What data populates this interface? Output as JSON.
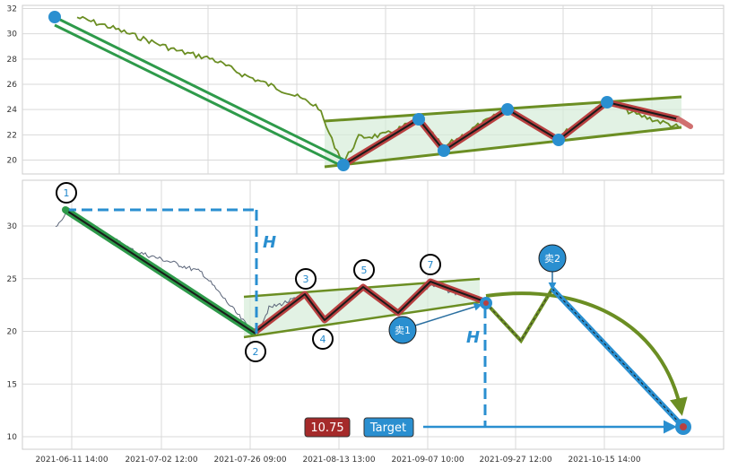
{
  "chart_data": [
    {
      "type": "line",
      "y_ticks": [
        "20",
        "22",
        "24",
        "26",
        "28",
        "30",
        "32"
      ],
      "ylim": [
        19,
        32
      ],
      "grid": true,
      "pattern_points": [
        {
          "date": "2021-06-11",
          "value": 31.3
        },
        {
          "date": "2021-07-26",
          "value": 19.6
        },
        {
          "date": "2021-08-06",
          "value": 23.3
        },
        {
          "date": "2021-08-13",
          "value": 20.7
        },
        {
          "date": "2021-08-27",
          "value": 24.0
        },
        {
          "date": "2021-09-07",
          "value": 21.6
        },
        {
          "date": "2021-09-15",
          "value": 24.6
        },
        {
          "date": "2021-09-25",
          "value": 22.6
        }
      ],
      "channel_upper": [
        {
          "date": "2021-07-25",
          "value": 23.0
        },
        {
          "date": "2021-09-29",
          "value": 25.0
        }
      ],
      "channel_lower": [
        {
          "date": "2021-07-25",
          "value": 19.5
        },
        {
          "date": "2021-09-29",
          "value": 22.5
        }
      ]
    },
    {
      "type": "line",
      "y_ticks": [
        "10",
        "15",
        "20",
        "25",
        "30"
      ],
      "ylim": [
        9,
        34
      ],
      "x_ticks": [
        "2021-06-11 14:00",
        "2021-07-02 12:00",
        "2021-07-26 09:00",
        "2021-08-13 13:00",
        "2021-09-07 10:00",
        "2021-09-27 12:00",
        "2021-10-15 14:00"
      ],
      "grid": true,
      "points": [
        {
          "label": "1",
          "value": 31.6
        },
        {
          "label": "2",
          "value": 19.5
        },
        {
          "label": "3",
          "value": 23.5
        },
        {
          "label": "4",
          "value": 20.5
        },
        {
          "label": "5",
          "value": 24.2
        },
        {
          "label": "7",
          "value": 24.6
        }
      ],
      "breakout_point": {
        "label": "卖1",
        "value": 22.6
      },
      "retest_point": {
        "label": "卖2",
        "value": 23.5
      },
      "pullback_low": 19.0,
      "target_value": 10.75,
      "target_label": "Target",
      "height_label": "H",
      "upper_line": {
        "start": 23.1,
        "end": 25.0
      },
      "lower_line": {
        "start": 19.5,
        "end": 22.5
      }
    }
  ],
  "colors": {
    "price_line": "#6b8e23",
    "trend_green": "#2e9a4a",
    "zigzag": "#a52a2a",
    "marker_blue": "#2a8fd0",
    "target_box": "#a52a2a",
    "channel_fill": "#d6ecd9"
  }
}
